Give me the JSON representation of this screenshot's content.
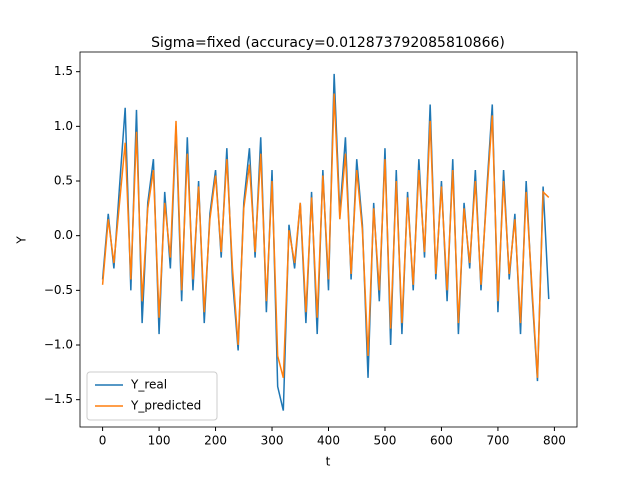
{
  "chart_data": {
    "type": "line",
    "title": "Sigma=fixed (accuracy=0.012873792085810866)",
    "xlabel": "t",
    "ylabel": "Y",
    "x": [
      0,
      10,
      20,
      30,
      40,
      50,
      60,
      70,
      80,
      90,
      100,
      110,
      120,
      130,
      140,
      150,
      160,
      170,
      180,
      190,
      200,
      210,
      220,
      230,
      240,
      250,
      260,
      270,
      280,
      290,
      300,
      310,
      320,
      330,
      340,
      350,
      360,
      370,
      380,
      390,
      400,
      410,
      420,
      430,
      440,
      450,
      460,
      470,
      480,
      490,
      500,
      510,
      520,
      530,
      540,
      550,
      560,
      570,
      580,
      590,
      600,
      610,
      620,
      630,
      640,
      650,
      660,
      670,
      680,
      690,
      700,
      710,
      720,
      730,
      740,
      750,
      760,
      770,
      780,
      790
    ],
    "series": [
      {
        "name": "Y_real",
        "color": "#1f77b4",
        "values": [
          -0.4,
          0.2,
          -0.3,
          0.45,
          1.17,
          -0.5,
          1.15,
          -0.8,
          0.3,
          0.7,
          -0.9,
          0.4,
          -0.3,
          1.0,
          -0.6,
          0.9,
          -0.5,
          0.5,
          -0.8,
          0.2,
          0.6,
          -0.2,
          0.8,
          -0.4,
          -1.05,
          0.3,
          0.8,
          -0.2,
          0.9,
          -0.7,
          0.6,
          -1.38,
          -1.6,
          0.1,
          -0.3,
          0.3,
          -0.8,
          0.4,
          -0.9,
          0.6,
          -0.5,
          1.48,
          0.2,
          0.9,
          -0.4,
          0.7,
          0.1,
          -1.3,
          0.3,
          -0.6,
          0.8,
          -1.0,
          0.6,
          -0.9,
          0.4,
          -0.5,
          0.7,
          -0.2,
          1.2,
          -0.4,
          0.5,
          -0.6,
          0.7,
          -0.9,
          0.3,
          -0.3,
          0.6,
          -0.5,
          0.4,
          1.2,
          -0.7,
          0.6,
          -0.4,
          0.2,
          -0.9,
          0.5,
          -0.5,
          -1.33,
          0.45,
          -0.58
        ]
      },
      {
        "name": "Y_predicted",
        "color": "#ff7f0e",
        "values": [
          -0.45,
          0.15,
          -0.25,
          0.3,
          0.85,
          -0.4,
          0.95,
          -0.6,
          0.25,
          0.6,
          -0.75,
          0.3,
          -0.2,
          1.05,
          -0.5,
          0.75,
          -0.4,
          0.45,
          -0.7,
          0.15,
          0.55,
          -0.15,
          0.7,
          -0.3,
          -1.0,
          0.25,
          0.65,
          -0.15,
          0.75,
          -0.6,
          0.5,
          -1.1,
          -1.3,
          0.05,
          -0.25,
          0.3,
          -0.7,
          0.35,
          -0.75,
          0.55,
          -0.4,
          1.3,
          0.15,
          0.75,
          -0.35,
          0.6,
          0.05,
          -1.1,
          0.25,
          -0.5,
          0.7,
          -0.85,
          0.5,
          -0.8,
          0.35,
          -0.45,
          0.6,
          -0.15,
          1.05,
          -0.35,
          0.45,
          -0.5,
          0.6,
          -0.8,
          0.25,
          -0.25,
          0.5,
          -0.45,
          0.35,
          1.1,
          -0.6,
          0.5,
          -0.35,
          0.15,
          -0.8,
          0.4,
          -0.45,
          -1.3,
          0.4,
          0.35
        ]
      }
    ],
    "xlim": [
      -40,
      840
    ],
    "ylim": [
      -1.75,
      1.68
    ],
    "xticks": [
      0,
      100,
      200,
      300,
      400,
      500,
      600,
      700,
      800
    ],
    "yticks": [
      {
        "value": -1.5,
        "label": "−1.5"
      },
      {
        "value": -1,
        "label": "−1.0"
      },
      {
        "value": -0.5,
        "label": "−0.5"
      },
      {
        "value": 0,
        "label": "0.0"
      },
      0.5,
      {
        "value": 1,
        "label": "1.0"
      },
      1.5
    ],
    "legend": "lower left"
  }
}
